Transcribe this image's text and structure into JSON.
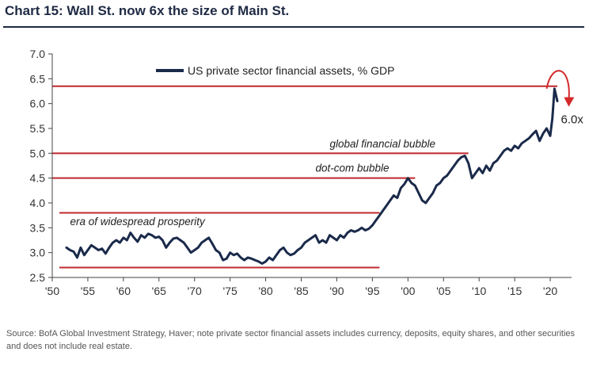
{
  "title": "Chart 15: Wall St. now 6x the size of Main St.",
  "source": "Source: BofA Global Investment Strategy, Haver; note private sector financial assets includes currency, deposits, equity shares, and other securities and does not include real estate.",
  "chart_data": {
    "type": "line",
    "title": "Chart 15: Wall St. now 6x the size of Main St.",
    "xlabel": "",
    "ylabel": "",
    "xlim": [
      1950,
      2023
    ],
    "ylim": [
      2.5,
      7.0
    ],
    "x_ticks": [
      1950,
      1955,
      1960,
      1965,
      1970,
      1975,
      1980,
      1985,
      1990,
      1995,
      2000,
      2005,
      2010,
      2015,
      2020
    ],
    "x_tick_labels": [
      "'50",
      "'55",
      "'60",
      "'65",
      "'70",
      "'75",
      "'80",
      "'85",
      "'90",
      "'95",
      "'00",
      "'05",
      "'10",
      "'15",
      "'20"
    ],
    "y_ticks": [
      2.5,
      3.0,
      3.5,
      4.0,
      4.5,
      5.0,
      5.5,
      6.0,
      6.5,
      7.0
    ],
    "y_tick_labels": [
      "2.5",
      "3.0",
      "3.5",
      "4.0",
      "4.5",
      "5.0",
      "5.5",
      "6.0",
      "6.5",
      "7.0"
    ],
    "grid": false,
    "legend_position": "top-center",
    "series": [
      {
        "name": "US private sector financial assets, % GDP",
        "color": "#1a2a4a",
        "points": [
          [
            1952,
            3.1
          ],
          [
            1952.5,
            3.05
          ],
          [
            1953,
            3.02
          ],
          [
            1953.5,
            2.9
          ],
          [
            1954,
            3.1
          ],
          [
            1954.5,
            2.95
          ],
          [
            1955,
            3.05
          ],
          [
            1955.5,
            3.15
          ],
          [
            1956,
            3.1
          ],
          [
            1956.5,
            3.05
          ],
          [
            1957,
            3.08
          ],
          [
            1957.5,
            2.98
          ],
          [
            1958,
            3.1
          ],
          [
            1958.5,
            3.2
          ],
          [
            1959,
            3.25
          ],
          [
            1959.5,
            3.2
          ],
          [
            1960,
            3.3
          ],
          [
            1960.5,
            3.25
          ],
          [
            1961,
            3.4
          ],
          [
            1961.5,
            3.3
          ],
          [
            1962,
            3.22
          ],
          [
            1962.5,
            3.35
          ],
          [
            1963,
            3.3
          ],
          [
            1963.5,
            3.38
          ],
          [
            1964,
            3.35
          ],
          [
            1964.5,
            3.3
          ],
          [
            1965,
            3.32
          ],
          [
            1965.5,
            3.25
          ],
          [
            1966,
            3.1
          ],
          [
            1966.5,
            3.2
          ],
          [
            1967,
            3.28
          ],
          [
            1967.5,
            3.3
          ],
          [
            1968,
            3.25
          ],
          [
            1968.5,
            3.2
          ],
          [
            1969,
            3.1
          ],
          [
            1969.5,
            3.0
          ],
          [
            1970,
            3.05
          ],
          [
            1970.5,
            3.1
          ],
          [
            1971,
            3.2
          ],
          [
            1971.5,
            3.25
          ],
          [
            1972,
            3.3
          ],
          [
            1972.5,
            3.18
          ],
          [
            1973,
            3.05
          ],
          [
            1973.5,
            3.0
          ],
          [
            1974,
            2.85
          ],
          [
            1974.5,
            2.88
          ],
          [
            1975,
            3.0
          ],
          [
            1975.5,
            2.95
          ],
          [
            1976,
            2.98
          ],
          [
            1976.5,
            2.9
          ],
          [
            1977,
            2.85
          ],
          [
            1977.5,
            2.9
          ],
          [
            1978,
            2.88
          ],
          [
            1978.5,
            2.85
          ],
          [
            1979,
            2.82
          ],
          [
            1979.5,
            2.78
          ],
          [
            1980,
            2.82
          ],
          [
            1980.5,
            2.9
          ],
          [
            1981,
            2.85
          ],
          [
            1981.5,
            2.95
          ],
          [
            1982,
            3.05
          ],
          [
            1982.5,
            3.1
          ],
          [
            1983,
            3.0
          ],
          [
            1983.5,
            2.95
          ],
          [
            1984,
            2.98
          ],
          [
            1984.5,
            3.05
          ],
          [
            1985,
            3.1
          ],
          [
            1985.5,
            3.2
          ],
          [
            1986,
            3.25
          ],
          [
            1986.5,
            3.3
          ],
          [
            1987,
            3.35
          ],
          [
            1987.5,
            3.2
          ],
          [
            1988,
            3.25
          ],
          [
            1988.5,
            3.2
          ],
          [
            1989,
            3.35
          ],
          [
            1989.5,
            3.3
          ],
          [
            1990,
            3.25
          ],
          [
            1990.5,
            3.35
          ],
          [
            1991,
            3.3
          ],
          [
            1991.5,
            3.4
          ],
          [
            1992,
            3.45
          ],
          [
            1992.5,
            3.42
          ],
          [
            1993,
            3.45
          ],
          [
            1993.5,
            3.5
          ],
          [
            1994,
            3.45
          ],
          [
            1994.5,
            3.48
          ],
          [
            1995,
            3.55
          ],
          [
            1995.5,
            3.65
          ],
          [
            1996,
            3.75
          ],
          [
            1996.5,
            3.85
          ],
          [
            1997,
            3.95
          ],
          [
            1997.5,
            4.05
          ],
          [
            1998,
            4.15
          ],
          [
            1998.5,
            4.1
          ],
          [
            1999,
            4.3
          ],
          [
            1999.5,
            4.38
          ],
          [
            2000,
            4.5
          ],
          [
            2000.5,
            4.4
          ],
          [
            2001,
            4.35
          ],
          [
            2001.5,
            4.2
          ],
          [
            2002,
            4.05
          ],
          [
            2002.5,
            4.0
          ],
          [
            2003,
            4.1
          ],
          [
            2003.5,
            4.2
          ],
          [
            2004,
            4.35
          ],
          [
            2004.5,
            4.4
          ],
          [
            2005,
            4.5
          ],
          [
            2005.5,
            4.55
          ],
          [
            2006,
            4.65
          ],
          [
            2006.5,
            4.75
          ],
          [
            2007,
            4.85
          ],
          [
            2007.5,
            4.92
          ],
          [
            2008,
            4.95
          ],
          [
            2008.5,
            4.8
          ],
          [
            2009,
            4.5
          ],
          [
            2009.5,
            4.6
          ],
          [
            2010,
            4.7
          ],
          [
            2010.5,
            4.6
          ],
          [
            2011,
            4.75
          ],
          [
            2011.5,
            4.65
          ],
          [
            2012,
            4.8
          ],
          [
            2012.5,
            4.85
          ],
          [
            2013,
            4.95
          ],
          [
            2013.5,
            5.05
          ],
          [
            2014,
            5.1
          ],
          [
            2014.5,
            5.05
          ],
          [
            2015,
            5.15
          ],
          [
            2015.5,
            5.1
          ],
          [
            2016,
            5.2
          ],
          [
            2016.5,
            5.25
          ],
          [
            2017,
            5.3
          ],
          [
            2017.5,
            5.38
          ],
          [
            2018,
            5.45
          ],
          [
            2018.5,
            5.25
          ],
          [
            2019,
            5.4
          ],
          [
            2019.5,
            5.5
          ],
          [
            2020,
            5.35
          ],
          [
            2020.3,
            5.7
          ],
          [
            2020.6,
            6.3
          ],
          [
            2021,
            6.05
          ]
        ]
      }
    ],
    "reference_lines": [
      {
        "y": 6.35,
        "x_start": 1950,
        "x_end": 2021,
        "color": "#c0282d"
      },
      {
        "y": 5.0,
        "x_start": 1950,
        "x_end": 2008.5,
        "color": "#c0282d"
      },
      {
        "y": 4.5,
        "x_start": 1950,
        "x_end": 2001,
        "color": "#c0282d"
      },
      {
        "y": 3.8,
        "x_start": 1951,
        "x_end": 1996,
        "color": "#c0282d"
      },
      {
        "y": 2.7,
        "x_start": 1951,
        "x_end": 1996,
        "color": "#c0282d"
      }
    ],
    "annotations": [
      {
        "text": "global financial bubble",
        "x": 1989,
        "y": 5.12
      },
      {
        "text": "dot-com bubble",
        "x": 1987,
        "y": 4.63
      },
      {
        "text": "era of widespread prosperity",
        "x": 1952.5,
        "y": 3.55
      },
      {
        "text": "6.0x",
        "x": 2021.5,
        "y": 5.6
      }
    ]
  }
}
